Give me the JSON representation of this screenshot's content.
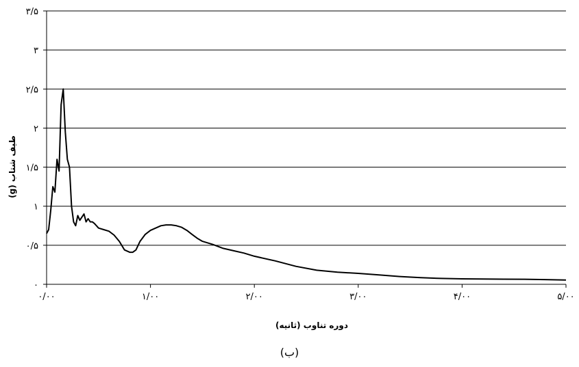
{
  "chart_data": {
    "type": "line",
    "xlabel": "دوره تناوب (ثانیه)",
    "ylabel": "طیف شتاب (g)",
    "xlim": [
      0,
      5
    ],
    "ylim": [
      0,
      3.5
    ],
    "x_ticks": [
      {
        "value": 0,
        "label": "۰/۰۰"
      },
      {
        "value": 1,
        "label": "۱/۰۰"
      },
      {
        "value": 2,
        "label": "۲/۰۰"
      },
      {
        "value": 3,
        "label": "۳/۰۰"
      },
      {
        "value": 4,
        "label": "۴/۰۰"
      },
      {
        "value": 5,
        "label": "۵/۰۰"
      }
    ],
    "y_ticks": [
      {
        "value": 0,
        "label": "۰"
      },
      {
        "value": 0.5,
        "label": "۰/۵"
      },
      {
        "value": 1,
        "label": "۱"
      },
      {
        "value": 1.5,
        "label": "۱/۵"
      },
      {
        "value": 2,
        "label": "۲"
      },
      {
        "value": 2.5,
        "label": "۲/۵"
      },
      {
        "value": 3,
        "label": "۳"
      },
      {
        "value": 3.5,
        "label": "۳/۵"
      }
    ],
    "grid": "horizontal",
    "legend": "none",
    "line_color": "#000000",
    "series": [
      {
        "x": [
          0.0,
          0.02,
          0.04,
          0.06,
          0.08,
          0.1,
          0.12,
          0.14,
          0.16,
          0.18,
          0.2,
          0.22,
          0.24,
          0.26,
          0.28,
          0.3,
          0.32,
          0.34,
          0.36,
          0.38,
          0.4,
          0.42,
          0.44,
          0.46,
          0.48,
          0.5,
          0.55,
          0.6,
          0.65,
          0.7,
          0.75,
          0.8,
          0.83,
          0.86,
          0.9,
          0.95,
          1.0,
          1.05,
          1.1,
          1.15,
          1.2,
          1.25,
          1.3,
          1.35,
          1.4,
          1.45,
          1.5,
          1.6,
          1.7,
          1.8,
          1.9,
          2.0,
          2.2,
          2.4,
          2.6,
          2.8,
          3.0,
          3.2,
          3.4,
          3.6,
          3.8,
          4.0,
          4.2,
          4.4,
          4.6,
          4.8,
          5.0
        ],
        "y": [
          0.65,
          0.7,
          0.95,
          1.25,
          1.18,
          1.6,
          1.45,
          2.3,
          2.5,
          1.95,
          1.6,
          1.5,
          1.0,
          0.8,
          0.75,
          0.88,
          0.82,
          0.86,
          0.9,
          0.8,
          0.84,
          0.8,
          0.8,
          0.78,
          0.75,
          0.72,
          0.7,
          0.68,
          0.63,
          0.55,
          0.44,
          0.41,
          0.41,
          0.44,
          0.55,
          0.64,
          0.69,
          0.72,
          0.75,
          0.76,
          0.76,
          0.75,
          0.73,
          0.69,
          0.64,
          0.59,
          0.55,
          0.51,
          0.46,
          0.43,
          0.4,
          0.36,
          0.3,
          0.23,
          0.18,
          0.155,
          0.14,
          0.12,
          0.1,
          0.085,
          0.075,
          0.07,
          0.068,
          0.066,
          0.065,
          0.06,
          0.055
        ]
      }
    ]
  },
  "panel_label": "(ب)"
}
